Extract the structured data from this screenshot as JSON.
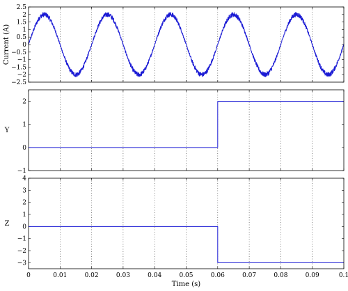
{
  "chart_data": {
    "type": "line",
    "x_ticks": [
      0,
      0.01,
      0.02,
      0.03,
      0.04,
      0.05,
      0.06,
      0.07,
      0.08,
      0.09,
      0.1
    ],
    "xlim": [
      0,
      0.1
    ],
    "xlabel": "Time (s)",
    "grid": "vertical dotted lines at x ticks",
    "line_color": "#1a1ad4",
    "panels": [
      {
        "ylabel": "Current (A)",
        "ylim": [
          -2.5,
          2.5
        ],
        "y_ticks": [
          -2.5,
          -2,
          -1.5,
          -1,
          -0.5,
          0,
          0.5,
          1,
          1.5,
          2,
          2.5
        ],
        "series": {
          "kind": "noisy-sine",
          "amplitude": 2,
          "frequency_hz": 50,
          "phase_start_value": 0,
          "noise_amplitude": 0.08
        }
      },
      {
        "ylabel": "Y",
        "ylim": [
          -1,
          2.5
        ],
        "y_ticks": [
          -1,
          0,
          1,
          2
        ],
        "series": {
          "kind": "step",
          "x": [
            0,
            0.06,
            0.06,
            0.1
          ],
          "y": [
            0,
            0,
            2,
            2
          ]
        }
      },
      {
        "ylabel": "Z",
        "ylim": [
          -3.5,
          4
        ],
        "y_ticks": [
          -3,
          -2,
          -1,
          0,
          1,
          2,
          3,
          4
        ],
        "series": {
          "kind": "step",
          "x": [
            0,
            0.06,
            0.06,
            0.1
          ],
          "y": [
            0,
            0,
            -3,
            -3
          ]
        }
      }
    ]
  }
}
